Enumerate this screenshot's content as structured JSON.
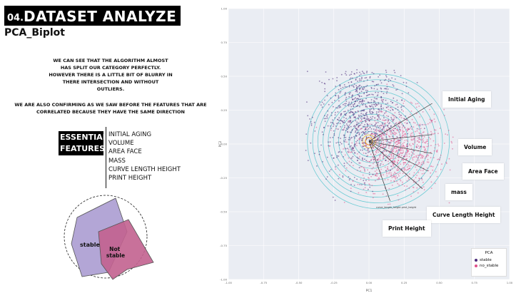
{
  "header": {
    "number": "04.",
    "title": "DATASET ANALYZE",
    "subtitle": "PCA_Biplot"
  },
  "description": {
    "paragraph1": "WE CAN SEE THAT THE ALGORITHM ALMOST\nHAS SPLIT OUR CATEGORY PERFECTLY.\nHOWEVER THERE IS A LITTLE BIT OF BLURRY IN\nTHERE INTERSECTION AND WITHOUT\nOUTLIERS.",
    "paragraph2": "WE ARE ALSO CONFIRMING AS WE SAW BEFORE THE FEATURES THAT ARE\nCORRELATED BECAUSE THEY HAVE THE SAME DIRECTION"
  },
  "essential": {
    "label": "ESSENTIAL\nFEATURES",
    "features": [
      "INITIAL AGING",
      "VOLUME",
      "AREA FACE",
      "MASS",
      "CURVE LENGTH HEIGHT",
      "PRINT HEIGHT"
    ]
  },
  "venn": {
    "stable_label": "stable",
    "not_stable_label": "Not\nstable"
  },
  "colors": {
    "stable": "#4b2a7a",
    "no_stable": "#e0508a",
    "venn_stable": "#b3a6d6",
    "venn_not_stable": "#c2628f",
    "plot_bg": "#eaedf3",
    "contour": "#5fc8d0"
  },
  "chart_data": {
    "type": "scatter",
    "title": "",
    "xlabel": "PC1",
    "ylabel": "PC2",
    "xlim": [
      -1.0,
      1.0
    ],
    "ylim": [
      -1.0,
      1.0
    ],
    "x_ticks": [
      "-1.00",
      "-0.75",
      "-0.50",
      "-0.25",
      "0.00",
      "0.25",
      "0.50",
      "0.75",
      "1.00"
    ],
    "y_ticks": [
      "1.00",
      "0.75",
      "0.50",
      "0.25",
      "0.00",
      "-0.25",
      "-0.50",
      "-0.75",
      "-1.00"
    ],
    "grid": true,
    "legend": {
      "title": "PCA",
      "placement": "bottom-right",
      "entries": [
        "stable",
        "no_stable"
      ]
    },
    "series": [
      {
        "name": "stable",
        "center": [
          -0.05,
          0.2
        ],
        "spread": [
          0.2,
          0.28
        ]
      },
      {
        "name": "no_stable",
        "center": [
          0.2,
          -0.05
        ],
        "spread": [
          0.22,
          0.2
        ]
      }
    ],
    "feature_vectors": [
      {
        "name": "Initial Aging",
        "end": [
          0.45,
          0.3
        ]
      },
      {
        "name": "Volume",
        "end": [
          0.45,
          0.07
        ]
      },
      {
        "name": "Area Face",
        "end": [
          0.45,
          -0.07
        ]
      },
      {
        "name": "mass",
        "end": [
          0.42,
          -0.2
        ]
      },
      {
        "name": "Curve Length Height",
        "end": [
          0.38,
          -0.33
        ]
      },
      {
        "name": "Print Height",
        "end": [
          0.15,
          -0.42
        ]
      }
    ],
    "axis_annotations": [
      "curve_length_height",
      "print_height"
    ],
    "callouts": [
      "Initial Aging",
      "Volume",
      "Area Face",
      "mass",
      "Curve Length Height",
      "Print Height"
    ]
  }
}
